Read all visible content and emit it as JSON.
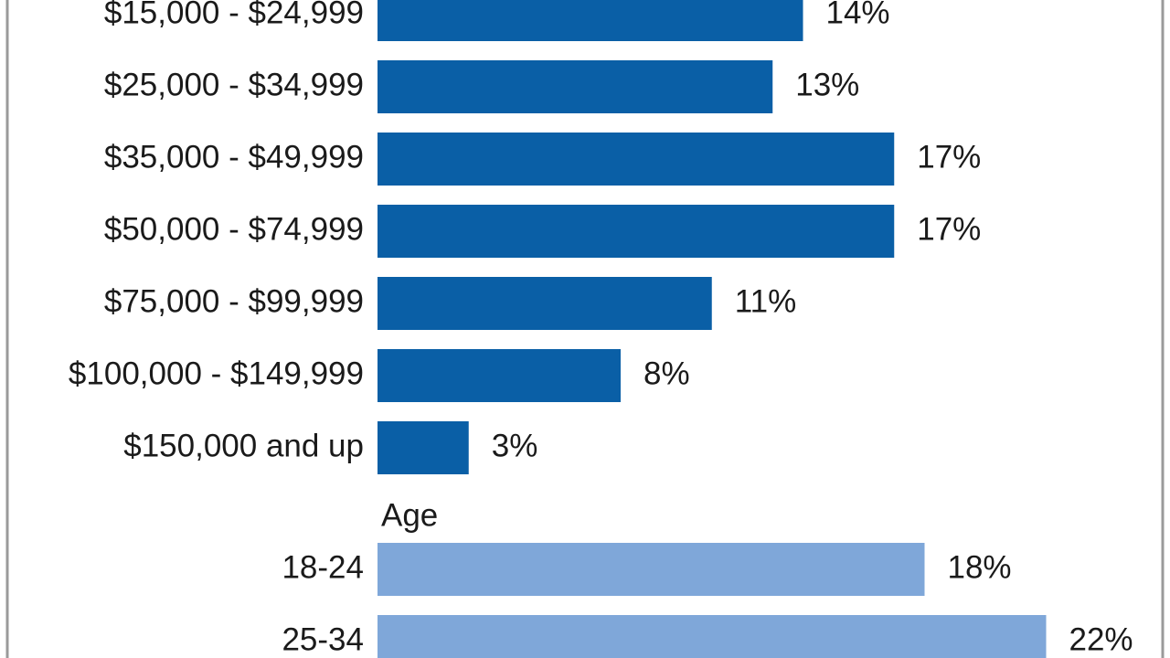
{
  "chart_data": [
    {
      "type": "bar",
      "orientation": "horizontal",
      "color": "#0a5fa6",
      "categories": [
        "$15,000 - $24,999",
        "$25,000 - $34,999",
        "$35,000 - $49,999",
        "$50,000 - $74,999",
        "$75,000 - $99,999",
        "$100,000 - $149,999",
        "$150,000 and up"
      ],
      "values": [
        14,
        13,
        17,
        17,
        11,
        8,
        3
      ],
      "value_labels": [
        "14%",
        "13%",
        "17%",
        "17%",
        "11%",
        "8%",
        "3%"
      ]
    },
    {
      "type": "bar",
      "orientation": "horizontal",
      "title": "Age",
      "color": "#7fa7d9",
      "categories": [
        "18-24",
        "25-34"
      ],
      "values": [
        18,
        22
      ],
      "value_labels": [
        "18%",
        "22%"
      ]
    }
  ]
}
